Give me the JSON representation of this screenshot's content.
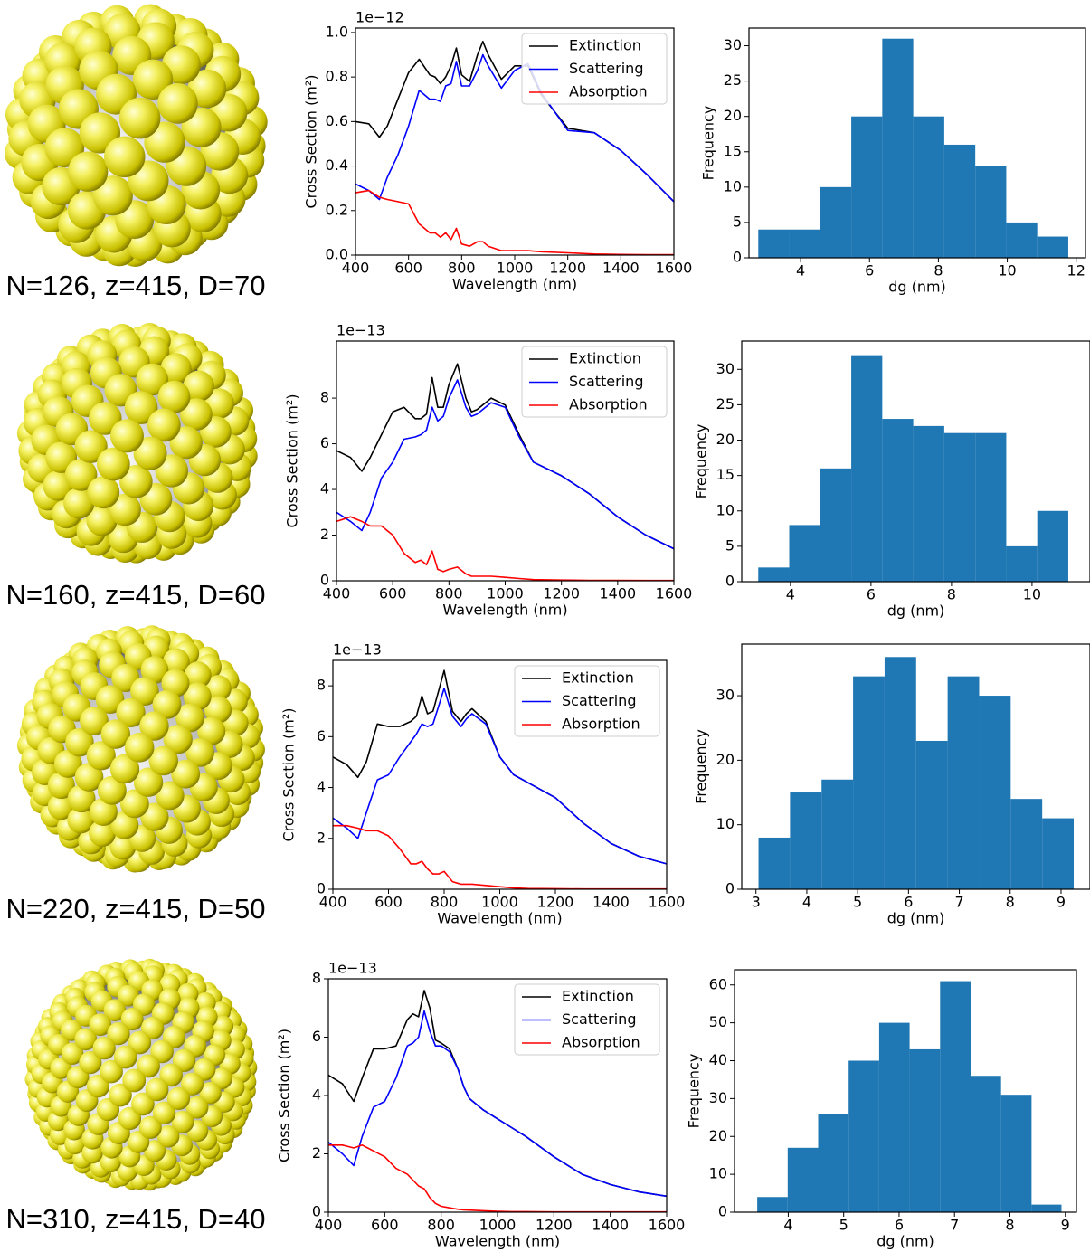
{
  "captions": [
    "N=126, z=415, D=70",
    "N=160, z=415, D=60",
    "N=220, z=415, D=50",
    "N=310, z=415, D=40"
  ],
  "chart_data": [
    {
      "type": "line",
      "offset_label": "1e−12",
      "x_label": "Wavelength (nm)",
      "y_label": "Cross Section (m²)",
      "legend": "upper right",
      "xlim": [
        400,
        1600
      ],
      "xticks": [
        400,
        600,
        800,
        1000,
        1200,
        1400,
        1600
      ],
      "ylim": [
        0,
        1.02
      ],
      "yticks": [
        {
          "value": 0,
          "label": "0.0"
        },
        {
          "value": 0.2,
          "label": "0.2"
        },
        {
          "value": 0.4,
          "label": "0.4"
        },
        {
          "value": 0.6,
          "label": "0.6"
        },
        {
          "value": 0.8,
          "label": "0.8"
        },
        {
          "value": 1,
          "label": "1.0"
        }
      ],
      "x": [
        400,
        450,
        490,
        520,
        560,
        600,
        640,
        680,
        700,
        720,
        740,
        760,
        780,
        800,
        830,
        860,
        880,
        900,
        950,
        1000,
        1050,
        1100,
        1200,
        1300,
        1400,
        1500,
        1600
      ],
      "series": [
        {
          "name": "Extinction",
          "color": "#000000",
          "values": [
            0.6,
            0.59,
            0.53,
            0.58,
            0.7,
            0.82,
            0.88,
            0.81,
            0.8,
            0.77,
            0.8,
            0.85,
            0.93,
            0.81,
            0.78,
            0.9,
            0.96,
            0.9,
            0.79,
            0.85,
            0.85,
            0.72,
            0.57,
            0.55,
            0.47,
            0.36,
            0.24
          ]
        },
        {
          "name": "Scattering",
          "color": "#0000ff",
          "values": [
            0.32,
            0.29,
            0.25,
            0.35,
            0.45,
            0.58,
            0.74,
            0.7,
            0.7,
            0.69,
            0.76,
            0.77,
            0.87,
            0.76,
            0.76,
            0.83,
            0.9,
            0.85,
            0.75,
            0.83,
            0.86,
            0.73,
            0.56,
            0.55,
            0.47,
            0.36,
            0.24
          ]
        },
        {
          "name": "Absorption",
          "color": "#ff0000",
          "values": [
            0.28,
            0.29,
            0.26,
            0.25,
            0.24,
            0.23,
            0.14,
            0.1,
            0.1,
            0.08,
            0.1,
            0.07,
            0.12,
            0.05,
            0.04,
            0.06,
            0.06,
            0.04,
            0.02,
            0.02,
            0.02,
            0.015,
            0.01,
            0.005,
            0.003,
            0.002,
            0.002
          ]
        }
      ]
    },
    {
      "type": "histogram",
      "x_label": "dg (nm)",
      "y_label": "Frequency",
      "color": "#1f77b4",
      "xlim": [
        2.5,
        12.27
      ],
      "xticks": [
        4,
        6,
        8,
        10,
        12
      ],
      "ylim": [
        0,
        32.5
      ],
      "yticks": [
        0,
        5,
        10,
        15,
        20,
        25,
        30
      ],
      "bins": [
        2.77,
        3.67,
        4.57,
        5.47,
        6.37,
        7.27,
        8.17,
        9.07,
        9.97,
        10.87,
        11.77
      ],
      "values": [
        4,
        4,
        10,
        20,
        31,
        20,
        16,
        13,
        5,
        3
      ]
    },
    {
      "type": "line",
      "offset_label": "1e−13",
      "x_label": "Wavelength (nm)",
      "y_label": "Cross Section (m²)",
      "legend": "upper right",
      "xlim": [
        400,
        1600
      ],
      "xticks": [
        400,
        600,
        800,
        1000,
        1200,
        1400,
        1600
      ],
      "ylim": [
        0,
        10.5
      ],
      "yticks": [
        0,
        2,
        4,
        6,
        8
      ],
      "x": [
        400,
        450,
        490,
        520,
        560,
        600,
        640,
        680,
        700,
        720,
        740,
        760,
        780,
        800,
        830,
        860,
        880,
        900,
        950,
        1000,
        1050,
        1100,
        1200,
        1300,
        1400,
        1500,
        1600
      ],
      "series": [
        {
          "name": "Extinction",
          "color": "#000000",
          "values": [
            5.7,
            5.4,
            4.8,
            5.4,
            6.4,
            7.4,
            7.6,
            7.1,
            7.1,
            7.3,
            8.9,
            7.6,
            7.6,
            8.6,
            9.5,
            8.0,
            7.4,
            7.5,
            8.0,
            7.7,
            6.4,
            5.2,
            4.6,
            3.8,
            2.8,
            2.0,
            1.4
          ]
        },
        {
          "name": "Scattering",
          "color": "#0000ff",
          "values": [
            3.0,
            2.6,
            2.2,
            3.0,
            4.5,
            5.2,
            6.2,
            6.3,
            6.4,
            6.6,
            7.6,
            7.0,
            7.2,
            8.0,
            8.8,
            7.6,
            7.2,
            7.3,
            7.8,
            7.6,
            6.3,
            5.2,
            4.6,
            3.8,
            2.8,
            2.0,
            1.4
          ]
        },
        {
          "name": "Absorption",
          "color": "#ff0000",
          "values": [
            2.6,
            2.8,
            2.6,
            2.4,
            2.4,
            2.0,
            1.2,
            0.8,
            0.9,
            0.7,
            1.3,
            0.5,
            0.4,
            0.5,
            0.6,
            0.3,
            0.2,
            0.2,
            0.2,
            0.15,
            0.1,
            0.05,
            0.03,
            0.02,
            0.02,
            0.01,
            0.01
          ]
        }
      ]
    },
    {
      "type": "histogram",
      "x_label": "dg (nm)",
      "y_label": "Frequency",
      "color": "#1f77b4",
      "xlim": [
        2.79,
        11.44
      ],
      "xticks": [
        4,
        6,
        8,
        10
      ],
      "ylim": [
        0,
        34
      ],
      "yticks": [
        0,
        5,
        10,
        15,
        20,
        25,
        30
      ],
      "bins": [
        3.2,
        3.97,
        4.74,
        5.51,
        6.28,
        7.05,
        7.82,
        8.59,
        9.36,
        10.13,
        10.9
      ],
      "values": [
        2,
        8,
        16,
        32,
        23,
        22,
        21,
        21,
        5,
        10
      ]
    },
    {
      "type": "line",
      "offset_label": "1e−13",
      "x_label": "Wavelength (nm)",
      "y_label": "Cross Section (m²)",
      "legend": "upper right",
      "xlim": [
        400,
        1600
      ],
      "xticks": [
        400,
        600,
        800,
        1000,
        1200,
        1400,
        1600
      ],
      "ylim": [
        0,
        9
      ],
      "yticks": [
        0,
        2,
        4,
        6,
        8
      ],
      "x": [
        400,
        450,
        490,
        520,
        560,
        600,
        640,
        680,
        700,
        720,
        740,
        760,
        780,
        800,
        830,
        860,
        880,
        900,
        950,
        1000,
        1050,
        1100,
        1200,
        1300,
        1400,
        1500,
        1600
      ],
      "series": [
        {
          "name": "Extinction",
          "color": "#000000",
          "values": [
            5.2,
            4.9,
            4.4,
            5.0,
            6.5,
            6.4,
            6.4,
            6.6,
            6.8,
            7.6,
            6.9,
            7.0,
            7.8,
            8.6,
            7.0,
            6.6,
            6.9,
            7.1,
            6.6,
            5.2,
            4.5,
            4.2,
            3.6,
            2.6,
            1.8,
            1.3,
            1.0
          ]
        },
        {
          "name": "Scattering",
          "color": "#0000ff",
          "values": [
            2.8,
            2.4,
            2.0,
            3.0,
            4.3,
            4.5,
            5.2,
            5.8,
            6.1,
            6.5,
            6.4,
            6.5,
            7.2,
            7.9,
            6.8,
            6.4,
            6.7,
            6.9,
            6.5,
            5.2,
            4.5,
            4.2,
            3.6,
            2.6,
            1.8,
            1.3,
            1.0
          ]
        },
        {
          "name": "Absorption",
          "color": "#ff0000",
          "values": [
            2.5,
            2.5,
            2.4,
            2.3,
            2.3,
            2.1,
            1.6,
            1.0,
            1.0,
            1.1,
            0.8,
            0.6,
            0.6,
            0.7,
            0.3,
            0.2,
            0.2,
            0.2,
            0.15,
            0.1,
            0.05,
            0.03,
            0.02,
            0.01,
            0.01,
            0.01,
            0.01
          ]
        }
      ]
    },
    {
      "type": "histogram",
      "x_label": "dg (nm)",
      "y_label": "Frequency",
      "color": "#1f77b4",
      "xlim": [
        2.72,
        9.57
      ],
      "xticks": [
        3,
        4,
        5,
        6,
        7,
        8,
        9
      ],
      "ylim": [
        0,
        38
      ],
      "yticks": [
        0,
        10,
        20,
        30
      ],
      "bins": [
        3.05,
        3.67,
        4.29,
        4.91,
        5.53,
        6.15,
        6.77,
        7.39,
        8.01,
        8.63,
        9.25
      ],
      "values": [
        8,
        15,
        17,
        33,
        36,
        23,
        33,
        30,
        14,
        11
      ]
    },
    {
      "type": "line",
      "offset_label": "1e−13",
      "x_label": "Wavelength (nm)",
      "y_label": "Cross Section (m²)",
      "legend": "upper right",
      "xlim": [
        400,
        1600
      ],
      "xticks": [
        400,
        600,
        800,
        1000,
        1200,
        1400,
        1600
      ],
      "ylim": [
        0,
        8
      ],
      "yticks": [
        0,
        2,
        4,
        6,
        8
      ],
      "x": [
        400,
        450,
        490,
        520,
        560,
        600,
        640,
        680,
        700,
        720,
        740,
        760,
        780,
        800,
        830,
        860,
        880,
        900,
        950,
        1000,
        1050,
        1100,
        1200,
        1300,
        1400,
        1500,
        1600
      ],
      "series": [
        {
          "name": "Extinction",
          "color": "#000000",
          "values": [
            4.7,
            4.4,
            3.8,
            4.6,
            5.6,
            5.6,
            5.7,
            6.6,
            6.8,
            6.7,
            7.6,
            7.0,
            5.9,
            5.8,
            5.6,
            4.9,
            4.3,
            3.9,
            3.5,
            3.2,
            2.9,
            2.6,
            1.9,
            1.3,
            0.95,
            0.7,
            0.55
          ]
        },
        {
          "name": "Scattering",
          "color": "#0000ff",
          "values": [
            2.4,
            2.0,
            1.6,
            2.6,
            3.6,
            3.8,
            4.6,
            5.7,
            5.8,
            6.0,
            6.9,
            6.2,
            5.7,
            5.7,
            5.5,
            4.9,
            4.3,
            3.9,
            3.5,
            3.2,
            2.9,
            2.6,
            1.9,
            1.3,
            0.95,
            0.7,
            0.55
          ]
        },
        {
          "name": "Absorption",
          "color": "#ff0000",
          "values": [
            2.3,
            2.3,
            2.2,
            2.3,
            2.1,
            1.9,
            1.5,
            1.3,
            1.1,
            0.9,
            0.8,
            0.5,
            0.3,
            0.2,
            0.15,
            0.1,
            0.08,
            0.07,
            0.05,
            0.03,
            0.02,
            0.02,
            0.01,
            0.01,
            0.01,
            0.01,
            0.01
          ]
        }
      ]
    },
    {
      "type": "histogram",
      "x_label": "dg (nm)",
      "y_label": "Frequency",
      "color": "#1f77b4",
      "xlim": [
        3.03,
        9.2
      ],
      "xticks": [
        4,
        5,
        6,
        7,
        8,
        9
      ],
      "ylim": [
        0,
        64
      ],
      "yticks": [
        0,
        10,
        20,
        30,
        40,
        50,
        60
      ],
      "bins": [
        3.44,
        3.99,
        4.54,
        5.09,
        5.64,
        6.19,
        6.74,
        7.29,
        7.84,
        8.39,
        8.93
      ],
      "values": [
        4,
        17,
        26,
        40,
        50,
        43,
        61,
        36,
        31,
        2
      ]
    }
  ]
}
